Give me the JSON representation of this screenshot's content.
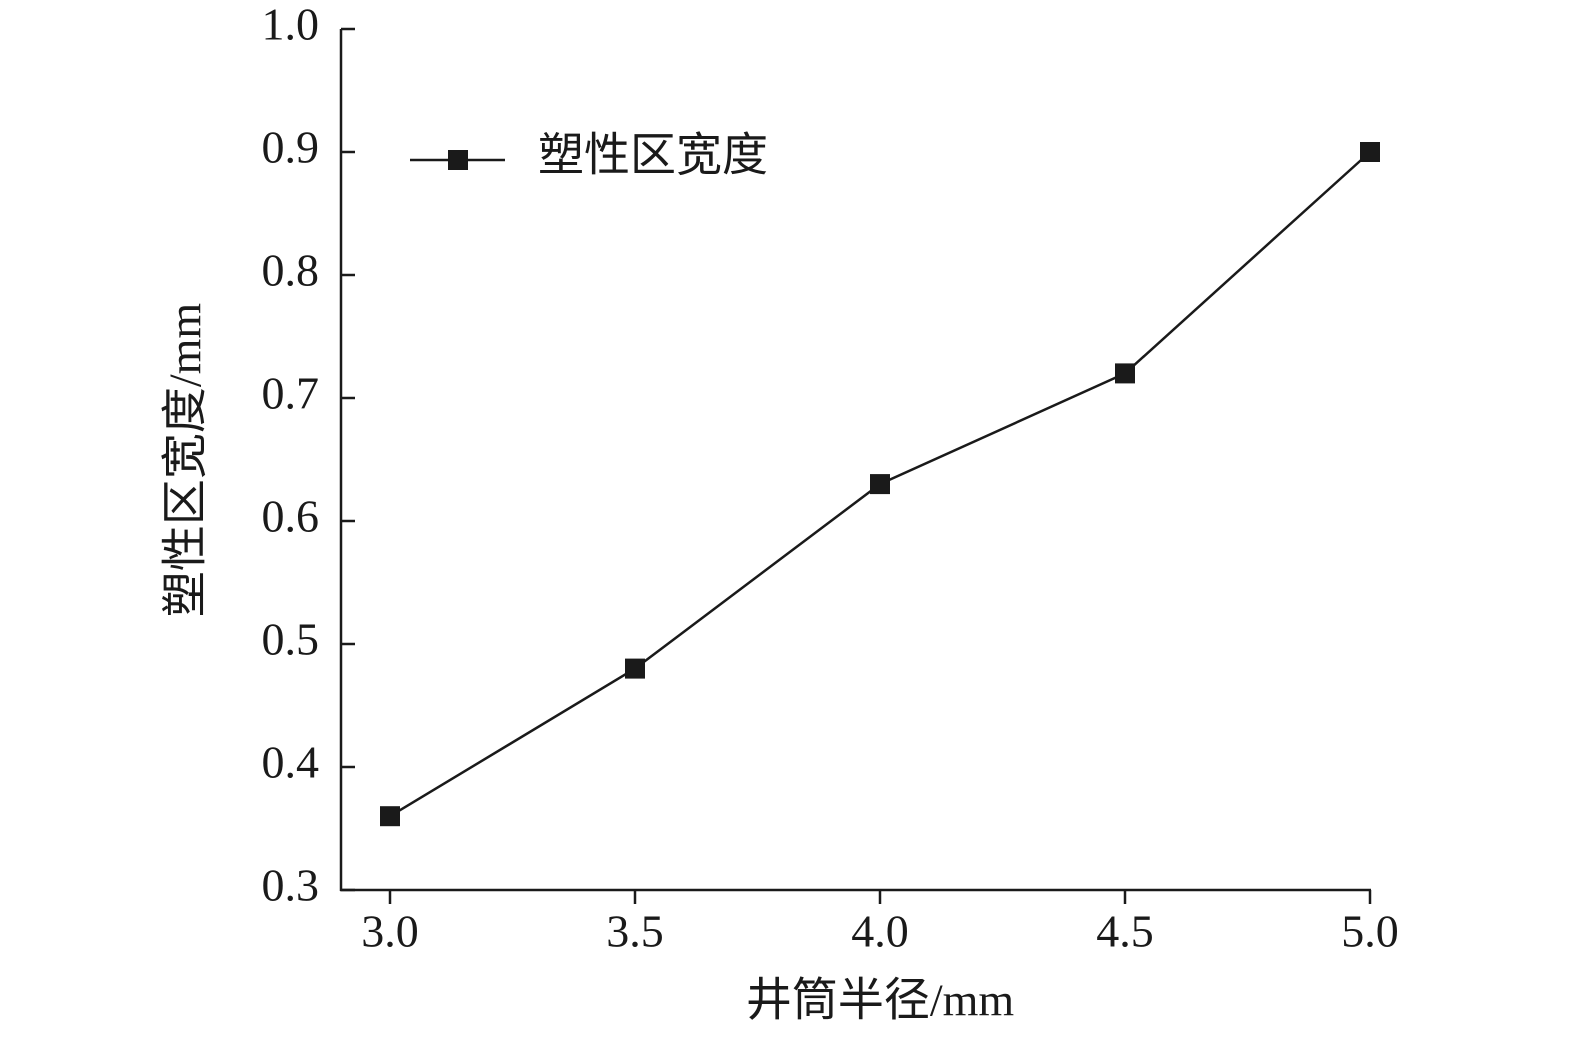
{
  "chart_data": {
    "type": "line",
    "x_label": "井筒半径/mm",
    "y_label": "塑性区宽度/mm",
    "x": [
      3.0,
      3.5,
      4.0,
      4.5,
      5.0
    ],
    "series": [
      {
        "name": "塑性区宽度",
        "color": "#1a1a1a",
        "values": [
          0.36,
          0.48,
          0.63,
          0.72,
          0.9
        ]
      }
    ],
    "xlim": [
      2.9,
      5.0
    ],
    "xticks": [
      {
        "value": 3,
        "label": "3.0"
      },
      3.5,
      {
        "value": 4,
        "label": "4.0"
      },
      4.5,
      {
        "value": 5,
        "label": "5.0"
      }
    ],
    "ylim": [
      0.3,
      1.0
    ],
    "yticks": [
      0.3,
      0.4,
      0.5,
      0.6,
      0.7,
      0.8,
      0.9,
      {
        "value": 1,
        "label": "1.0"
      }
    ],
    "grid": false,
    "legend": "upper left"
  }
}
